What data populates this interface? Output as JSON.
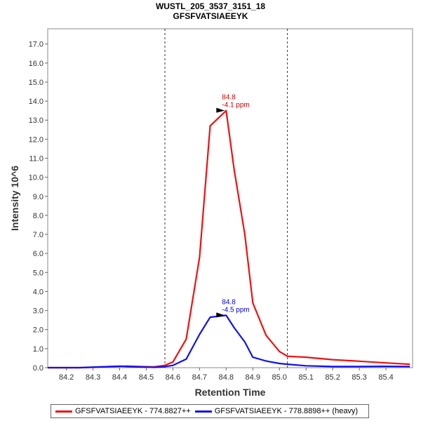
{
  "chart_data": {
    "type": "line",
    "title": "WUSTL_205_3537_3151_18",
    "subtitle": "GFSFVATSIAEEYK",
    "xlabel": "Retention Time",
    "ylabel": "Intensity 10^6",
    "xlim": [
      84.13,
      85.5
    ],
    "ylim": [
      0,
      17.8
    ],
    "x_ticks": [
      "84.2",
      "84.3",
      "84.4",
      "84.5",
      "84.6",
      "84.7",
      "84.8",
      "84.9",
      "85.0",
      "85.1",
      "85.2",
      "85.3",
      "85.4"
    ],
    "y_ticks": [
      "0.0",
      "1.0",
      "2.0",
      "3.0",
      "4.0",
      "5.0",
      "6.0",
      "7.0",
      "8.0",
      "9.0",
      "10.0",
      "11.0",
      "12.0",
      "13.0",
      "14.0",
      "15.0",
      "16.0",
      "17.0"
    ],
    "boundaries": [
      84.57,
      85.03
    ],
    "legend_position": "bottom",
    "series": [
      {
        "name": "GFSFVATSIAEEYK - 774.8827++",
        "color": "#ee1111",
        "x": [
          84.13,
          84.25,
          84.3,
          84.35,
          84.4,
          84.43,
          84.47,
          84.5,
          84.53,
          84.57,
          84.6,
          84.65,
          84.7,
          84.74,
          84.8,
          84.83,
          84.87,
          84.9,
          84.95,
          85.0,
          85.03,
          85.1,
          85.2,
          85.3,
          85.4,
          85.49
        ],
        "y": [
          0.0,
          0.0,
          0.02,
          0.05,
          0.07,
          0.08,
          0.06,
          0.05,
          0.04,
          0.12,
          0.3,
          1.5,
          5.8,
          12.7,
          13.5,
          10.4,
          7.0,
          3.4,
          1.7,
          0.85,
          0.6,
          0.55,
          0.42,
          0.34,
          0.25,
          0.18
        ]
      },
      {
        "name": "GFSFVATSIAEEYK - 778.8898++ (heavy)",
        "color": "#1111ee",
        "x": [
          84.13,
          84.25,
          84.3,
          84.35,
          84.4,
          84.43,
          84.47,
          84.5,
          84.53,
          84.57,
          84.6,
          84.65,
          84.7,
          84.74,
          84.8,
          84.83,
          84.87,
          84.9,
          84.95,
          85.0,
          85.03,
          85.1,
          85.2,
          85.3,
          85.4,
          85.49
        ],
        "y": [
          0.0,
          0.0,
          0.03,
          0.05,
          0.08,
          0.06,
          0.04,
          0.03,
          0.02,
          0.05,
          0.12,
          0.45,
          1.75,
          2.65,
          2.75,
          2.1,
          1.35,
          0.55,
          0.35,
          0.22,
          0.18,
          0.1,
          0.06,
          0.06,
          0.07,
          0.06
        ]
      }
    ],
    "annotations": [
      {
        "x": 84.8,
        "y": 13.5,
        "lines": [
          "84.8",
          "-4.1 ppm"
        ],
        "color": "#cc0000"
      },
      {
        "x": 84.8,
        "y": 2.75,
        "lines": [
          "84.8",
          "-4.5 ppm"
        ],
        "color": "#0000cc"
      }
    ]
  }
}
